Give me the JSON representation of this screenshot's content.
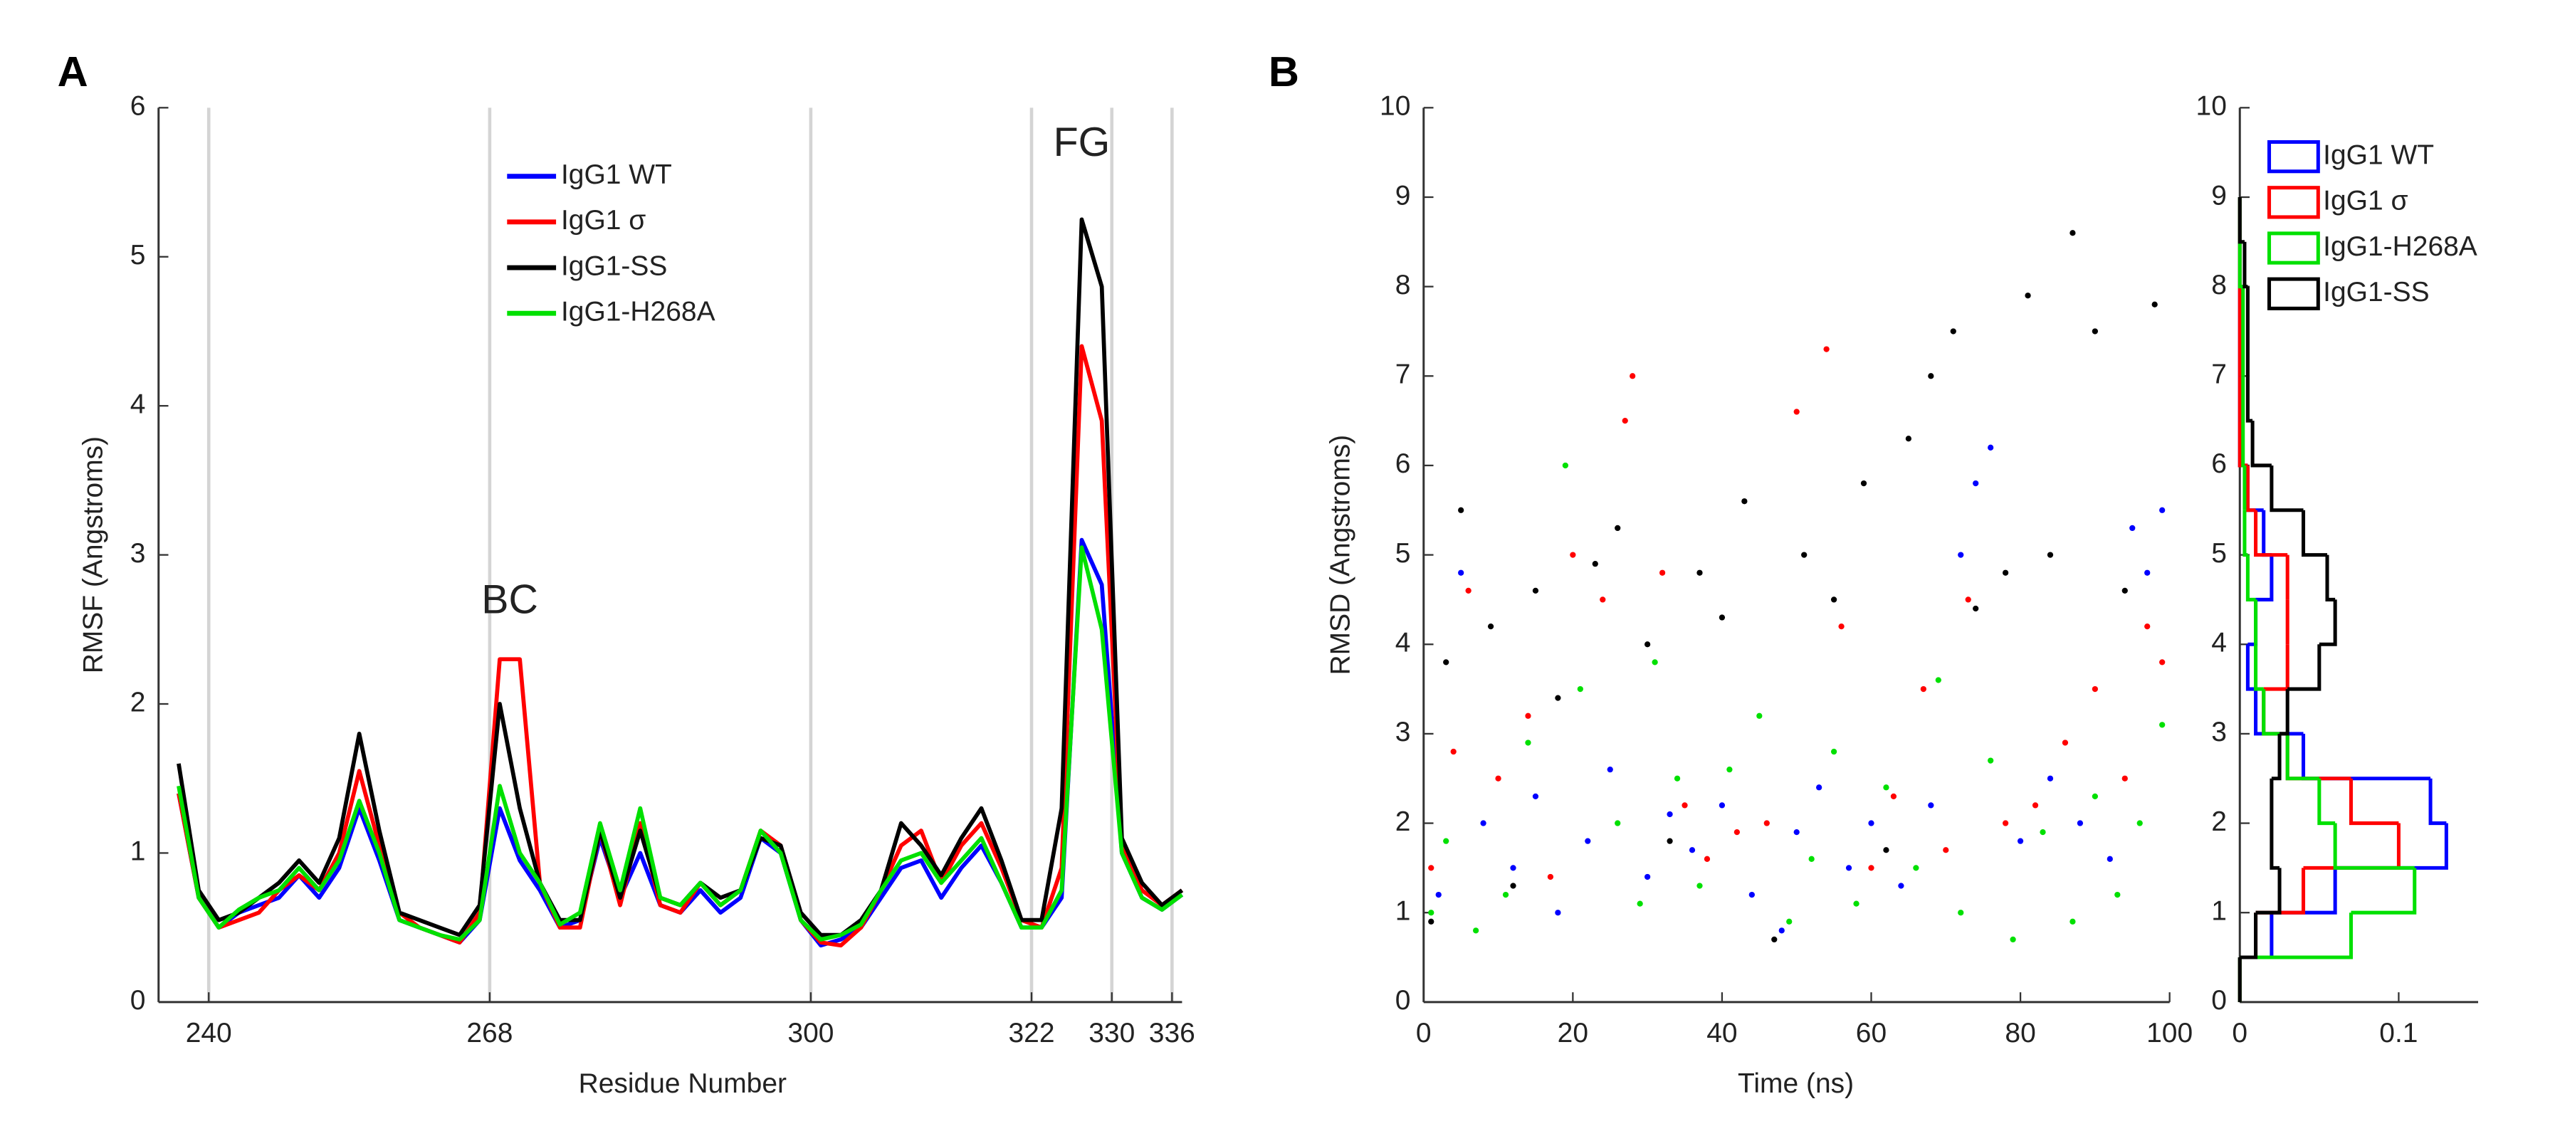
{
  "chart_data": [
    {
      "type": "line",
      "panel_label": "A",
      "xlabel": "Residue Number",
      "ylabel": "RMSF (Angstroms)",
      "xlim": [
        235,
        337
      ],
      "xticks": [
        240,
        268,
        300,
        322,
        330,
        336
      ],
      "ylim": [
        0,
        6
      ],
      "yticks": [
        0,
        1,
        2,
        3,
        4,
        5,
        6
      ],
      "grid": "x",
      "legend": "upper center",
      "annotations": [
        {
          "text": "BC",
          "x": 270,
          "y": 2.68
        },
        {
          "text": "FG",
          "x": 327,
          "y": 5.75
        }
      ],
      "x": [
        237,
        239,
        241,
        243,
        245,
        247,
        249,
        251,
        253,
        255,
        257,
        259,
        261,
        263,
        265,
        267,
        269,
        271,
        273,
        275,
        277,
        279,
        281,
        283,
        285,
        287,
        289,
        291,
        293,
        295,
        297,
        299,
        301,
        303,
        305,
        307,
        309,
        311,
        313,
        315,
        317,
        319,
        321,
        323,
        325,
        327,
        329,
        331,
        333,
        335,
        337
      ],
      "series": [
        {
          "name": "IgG1 WT",
          "color": "#0000ff",
          "values": [
            1.4,
            0.7,
            0.5,
            0.6,
            0.65,
            0.7,
            0.85,
            0.7,
            0.9,
            1.3,
            0.95,
            0.55,
            0.5,
            0.45,
            0.4,
            0.55,
            1.3,
            0.95,
            0.75,
            0.5,
            0.55,
            1.1,
            0.7,
            1.0,
            0.65,
            0.6,
            0.75,
            0.6,
            0.7,
            1.1,
            1.0,
            0.55,
            0.38,
            0.42,
            0.5,
            0.7,
            0.9,
            0.95,
            0.7,
            0.9,
            1.05,
            0.8,
            0.5,
            0.5,
            0.7,
            3.1,
            2.8,
            1.0,
            0.7,
            0.62,
            0.72
          ]
        },
        {
          "name": "IgG1 σ",
          "color": "#ff0000",
          "values": [
            1.4,
            0.7,
            0.5,
            0.55,
            0.6,
            0.75,
            0.85,
            0.75,
            1.0,
            1.55,
            1.05,
            0.6,
            0.5,
            0.45,
            0.4,
            0.6,
            2.3,
            2.3,
            0.8,
            0.5,
            0.5,
            1.15,
            0.65,
            1.2,
            0.65,
            0.6,
            0.8,
            0.65,
            0.75,
            1.15,
            1.05,
            0.55,
            0.4,
            0.38,
            0.5,
            0.75,
            1.05,
            1.15,
            0.8,
            1.05,
            1.2,
            0.9,
            0.55,
            0.5,
            0.9,
            4.4,
            3.9,
            1.05,
            0.75,
            0.65,
            0.75
          ]
        },
        {
          "name": "IgG1-SS",
          "color": "#000000",
          "values": [
            1.6,
            0.75,
            0.55,
            0.6,
            0.7,
            0.8,
            0.95,
            0.8,
            1.1,
            1.8,
            1.15,
            0.6,
            0.55,
            0.5,
            0.45,
            0.65,
            2.0,
            1.3,
            0.8,
            0.55,
            0.55,
            1.15,
            0.7,
            1.15,
            0.7,
            0.65,
            0.8,
            0.7,
            0.75,
            1.1,
            1.05,
            0.6,
            0.45,
            0.45,
            0.55,
            0.75,
            1.2,
            1.05,
            0.85,
            1.1,
            1.3,
            0.95,
            0.55,
            0.55,
            1.3,
            5.25,
            4.8,
            1.1,
            0.8,
            0.65,
            0.75
          ]
        },
        {
          "name": "IgG1-H268A",
          "color": "#00e000",
          "values": [
            1.45,
            0.7,
            0.5,
            0.62,
            0.7,
            0.75,
            0.9,
            0.75,
            0.95,
            1.35,
            1.0,
            0.55,
            0.5,
            0.45,
            0.42,
            0.55,
            1.45,
            1.0,
            0.8,
            0.52,
            0.6,
            1.2,
            0.75,
            1.3,
            0.7,
            0.65,
            0.8,
            0.65,
            0.75,
            1.15,
            1.0,
            0.55,
            0.42,
            0.45,
            0.52,
            0.75,
            0.95,
            1.0,
            0.8,
            0.95,
            1.1,
            0.8,
            0.5,
            0.5,
            0.75,
            3.05,
            2.5,
            1.0,
            0.7,
            0.62,
            0.72
          ]
        }
      ]
    },
    {
      "type": "scatter",
      "panel_label": "B",
      "xlabel": "Time (ns)",
      "ylabel": "RMSD (Angstroms)",
      "xlim": [
        0,
        100
      ],
      "xticks": [
        0,
        20,
        40,
        60,
        80,
        100
      ],
      "ylim": [
        0,
        10
      ],
      "yticks": [
        0,
        1,
        2,
        3,
        4,
        5,
        6,
        7,
        8,
        9,
        10
      ],
      "series": [
        {
          "color": "#0000ff",
          "x": [
            2,
            5,
            8,
            12,
            15,
            18,
            22,
            25,
            30,
            33,
            36,
            40,
            44,
            48,
            50,
            53,
            57,
            60,
            64,
            68,
            72,
            74,
            76,
            80,
            84,
            88,
            92,
            95,
            97,
            99
          ],
          "values": [
            1.2,
            4.8,
            2.0,
            1.5,
            2.3,
            1.0,
            1.8,
            2.6,
            1.4,
            2.1,
            1.7,
            2.2,
            1.2,
            0.8,
            1.9,
            2.4,
            1.5,
            2.0,
            1.3,
            2.2,
            5.0,
            5.8,
            6.2,
            1.8,
            2.5,
            2.0,
            1.6,
            5.3,
            4.8,
            5.5
          ]
        },
        {
          "color": "#ff0000",
          "x": [
            1,
            4,
            6,
            10,
            14,
            17,
            20,
            24,
            27,
            28,
            32,
            35,
            38,
            42,
            46,
            50,
            54,
            56,
            60,
            63,
            67,
            70,
            73,
            78,
            82,
            86,
            90,
            94,
            97,
            99
          ],
          "values": [
            1.5,
            2.8,
            4.6,
            2.5,
            3.2,
            1.4,
            5.0,
            4.5,
            6.5,
            7.0,
            4.8,
            2.2,
            1.6,
            1.9,
            2.0,
            6.6,
            7.3,
            4.2,
            1.5,
            2.3,
            3.5,
            1.7,
            4.5,
            2.0,
            2.2,
            2.9,
            3.5,
            2.5,
            4.2,
            3.8
          ]
        },
        {
          "color": "#00e000",
          "x": [
            1,
            3,
            7,
            11,
            14,
            19,
            21,
            26,
            29,
            31,
            34,
            37,
            41,
            45,
            49,
            52,
            55,
            58,
            62,
            66,
            69,
            72,
            76,
            79,
            83,
            87,
            90,
            93,
            96,
            99
          ],
          "values": [
            1.0,
            1.8,
            0.8,
            1.2,
            2.9,
            6.0,
            3.5,
            2.0,
            1.1,
            3.8,
            2.5,
            1.3,
            2.6,
            3.2,
            0.9,
            1.6,
            2.8,
            1.1,
            2.4,
            1.5,
            3.6,
            1.0,
            2.7,
            0.7,
            1.9,
            0.9,
            2.3,
            1.2,
            2.0,
            3.1
          ]
        },
        {
          "color": "#000000",
          "x": [
            1,
            3,
            5,
            9,
            12,
            15,
            18,
            23,
            26,
            30,
            33,
            37,
            40,
            43,
            47,
            51,
            55,
            59,
            62,
            65,
            68,
            71,
            74,
            78,
            81,
            84,
            87,
            90,
            94,
            98
          ],
          "values": [
            0.9,
            3.8,
            5.5,
            4.2,
            1.3,
            4.6,
            3.4,
            4.9,
            5.3,
            4.0,
            1.8,
            4.8,
            4.3,
            5.6,
            0.7,
            5.0,
            4.5,
            5.8,
            1.7,
            6.3,
            7.0,
            7.5,
            4.4,
            4.8,
            7.9,
            5.0,
            8.6,
            7.5,
            4.6,
            7.8
          ]
        }
      ]
    },
    {
      "type": "histogram",
      "orientation": "horizontal",
      "legend": "upper right",
      "xlim": [
        0,
        0.15
      ],
      "xticks": [
        0,
        0.1
      ],
      "ylim": [
        0,
        10
      ],
      "yticks": [
        0,
        1,
        2,
        3,
        4,
        5,
        6,
        7,
        8,
        9,
        10
      ],
      "bins": [
        0,
        0.5,
        1,
        1.5,
        2,
        2.5,
        3,
        3.5,
        4,
        4.5,
        5,
        5.5,
        6,
        6.5,
        7,
        7.5,
        8,
        8.5,
        9
      ],
      "series": [
        {
          "name": "IgG1 WT",
          "color": "#0000ff",
          "values": [
            0,
            0.02,
            0.06,
            0.13,
            0.12,
            0.04,
            0.01,
            0.005,
            0.01,
            0.02,
            0.015,
            0.005,
            0,
            0,
            0,
            0,
            0,
            0
          ]
        },
        {
          "name": "IgG1 σ",
          "color": "#ff0000",
          "values": [
            0,
            0.01,
            0.04,
            0.1,
            0.07,
            0.03,
            0.015,
            0.03,
            0.03,
            0.03,
            0.01,
            0.005,
            0,
            0,
            0,
            0,
            0,
            0
          ]
        },
        {
          "name": "IgG1-H268A",
          "color": "#00e000",
          "values": [
            0,
            0.07,
            0.11,
            0.06,
            0.05,
            0.03,
            0.015,
            0.01,
            0.01,
            0.005,
            0.003,
            0.003,
            0.002,
            0.002,
            0.002,
            0.002,
            0,
            0
          ]
        },
        {
          "name": "IgG1-SS",
          "color": "#000000",
          "values": [
            0,
            0.01,
            0.025,
            0.02,
            0.02,
            0.025,
            0.03,
            0.05,
            0.06,
            0.055,
            0.04,
            0.02,
            0.008,
            0.005,
            0.005,
            0.005,
            0.003,
            0
          ]
        }
      ]
    }
  ]
}
